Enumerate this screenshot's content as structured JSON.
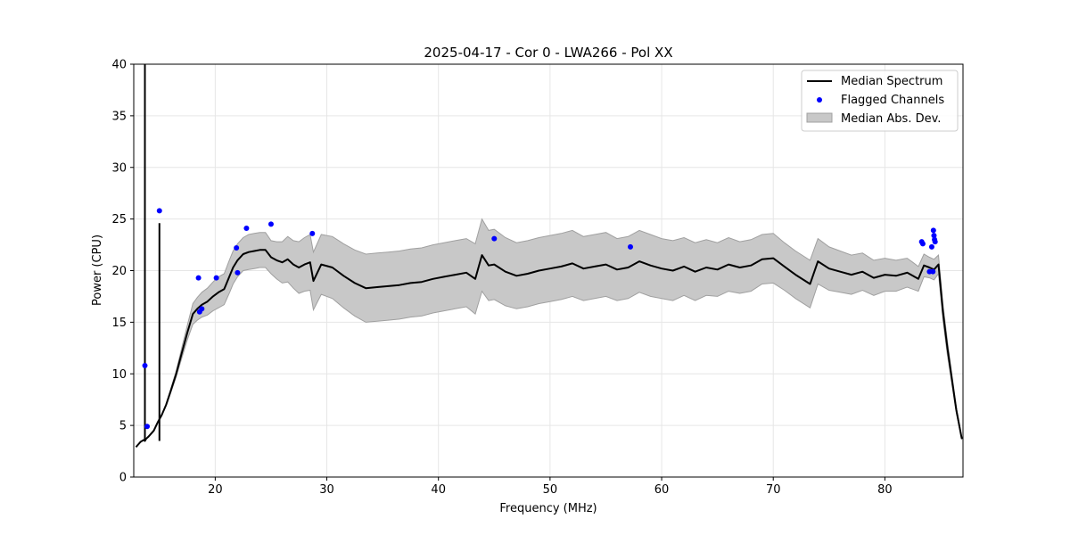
{
  "chart_data": {
    "type": "line",
    "title": "2025-04-17 - Cor 0 - LWA266 - Pol XX",
    "xlabel": "Frequency (MHz)",
    "ylabel": "Power (CPU)",
    "xlim": [
      12.7,
      87.0
    ],
    "ylim": [
      0,
      40
    ],
    "xticks": [
      20,
      30,
      40,
      50,
      60,
      70,
      80
    ],
    "yticks": [
      0,
      5,
      10,
      15,
      20,
      25,
      30,
      35,
      40
    ],
    "grid": true,
    "legend_position": "top-right",
    "legend": [
      "Median Spectrum",
      "Flagged Channels",
      "Median Abs. Dev."
    ],
    "colors": {
      "median": "#000000",
      "flagged": "#0000ff",
      "band_fill": "#c8c8c8",
      "band_edge": "#a0a0a0"
    },
    "series": [
      {
        "name": "Median Spectrum",
        "x": [
          12.9,
          13.3,
          13.6,
          13.7,
          13.8,
          14.0,
          14.5,
          14.8,
          14.9,
          15.2,
          15.6,
          16.0,
          16.5,
          17.0,
          17.5,
          18.0,
          18.4,
          18.8,
          19.3,
          19.8,
          20.3,
          20.8,
          21.3,
          21.6,
          22.0,
          22.5,
          23.0,
          23.5,
          24.0,
          24.5,
          25.0,
          25.5,
          26.0,
          26.5,
          27.0,
          27.5,
          28.0,
          28.5,
          28.8,
          29.5,
          30.5,
          31.5,
          32.5,
          33.5,
          34.5,
          35.5,
          36.5,
          37.5,
          38.5,
          39.5,
          40.5,
          41.5,
          42.5,
          43.3,
          43.9,
          44.5,
          45.0,
          46.0,
          47.0,
          48.0,
          49.0,
          50.0,
          51.0,
          52.0,
          53.0,
          54.0,
          55.0,
          56.0,
          57.0,
          58.0,
          59.0,
          60.0,
          61.0,
          62.0,
          63.0,
          64.0,
          65.0,
          66.0,
          67.0,
          68.0,
          69.0,
          70.0,
          71.0,
          72.0,
          73.3,
          74.0,
          75.0,
          76.0,
          77.0,
          78.0,
          79.0,
          80.0,
          81.0,
          82.0,
          82.5,
          83.0,
          83.5,
          84.0,
          84.4,
          84.8,
          85.2,
          85.6,
          86.0,
          86.4,
          86.9
        ],
        "values": [
          2.9,
          3.4,
          3.6,
          3.5,
          3.7,
          3.9,
          4.5,
          5.2,
          5.4,
          6.0,
          7.0,
          8.3,
          10.0,
          12.0,
          14.0,
          15.8,
          16.3,
          16.7,
          17.0,
          17.5,
          17.9,
          18.2,
          19.5,
          20.3,
          21.0,
          21.6,
          21.8,
          21.9,
          22.0,
          22.0,
          21.3,
          21.0,
          20.8,
          21.1,
          20.6,
          20.3,
          20.6,
          20.8,
          19.0,
          20.6,
          20.3,
          19.5,
          18.8,
          18.3,
          18.4,
          18.5,
          18.6,
          18.8,
          18.9,
          19.2,
          19.4,
          19.6,
          19.8,
          19.2,
          21.5,
          20.5,
          20.6,
          19.9,
          19.5,
          19.7,
          20.0,
          20.2,
          20.4,
          20.7,
          20.2,
          20.4,
          20.6,
          20.1,
          20.3,
          20.9,
          20.5,
          20.2,
          20.0,
          20.4,
          19.9,
          20.3,
          20.1,
          20.6,
          20.3,
          20.5,
          21.1,
          21.2,
          20.4,
          19.6,
          18.7,
          20.9,
          20.2,
          19.9,
          19.6,
          19.9,
          19.3,
          19.6,
          19.5,
          19.8,
          19.5,
          19.2,
          20.5,
          20.3,
          20.1,
          20.6,
          16.0,
          12.5,
          9.5,
          6.5,
          3.7
        ],
        "mad": [
          0.0,
          0.0,
          0.0,
          0.0,
          0.0,
          0.0,
          0.0,
          0.0,
          0.0,
          0.0,
          0.1,
          0.2,
          0.3,
          0.5,
          0.7,
          1.0,
          1.1,
          1.2,
          1.3,
          1.4,
          1.5,
          1.5,
          1.6,
          1.6,
          1.6,
          1.6,
          1.7,
          1.7,
          1.7,
          1.7,
          1.6,
          1.8,
          2.0,
          2.2,
          2.3,
          2.5,
          2.6,
          2.7,
          2.8,
          2.9,
          3.0,
          3.1,
          3.2,
          3.3,
          3.3,
          3.3,
          3.3,
          3.3,
          3.3,
          3.3,
          3.3,
          3.3,
          3.3,
          3.4,
          3.5,
          3.4,
          3.4,
          3.3,
          3.2,
          3.2,
          3.2,
          3.2,
          3.2,
          3.2,
          3.1,
          3.1,
          3.1,
          3.0,
          3.0,
          3.0,
          3.0,
          2.9,
          2.9,
          2.8,
          2.8,
          2.7,
          2.6,
          2.6,
          2.5,
          2.5,
          2.4,
          2.4,
          2.3,
          2.3,
          2.3,
          2.2,
          2.1,
          2.0,
          1.9,
          1.8,
          1.7,
          1.6,
          1.5,
          1.4,
          1.3,
          1.2,
          1.1,
          1.0,
          1.0,
          0.9,
          0.8,
          0.7,
          0.5,
          0.3,
          0.1
        ]
      },
      {
        "name": "Flagged Channels",
        "points": [
          [
            13.7,
            10.8
          ],
          [
            13.9,
            4.9
          ],
          [
            15.0,
            25.8
          ],
          [
            18.5,
            19.3
          ],
          [
            18.6,
            16.0
          ],
          [
            18.8,
            16.3
          ],
          [
            20.1,
            19.3
          ],
          [
            21.9,
            22.2
          ],
          [
            22.0,
            19.8
          ],
          [
            22.8,
            24.1
          ],
          [
            25.0,
            24.5
          ],
          [
            28.7,
            23.6
          ],
          [
            45.0,
            23.1
          ],
          [
            57.2,
            22.3
          ],
          [
            83.3,
            22.8
          ],
          [
            83.4,
            22.6
          ],
          [
            84.0,
            19.9
          ],
          [
            84.2,
            22.3
          ],
          [
            84.3,
            19.9
          ],
          [
            84.35,
            23.9
          ],
          [
            84.4,
            23.4
          ],
          [
            84.45,
            23.0
          ],
          [
            84.5,
            22.8
          ]
        ]
      }
    ],
    "spikes": [
      {
        "x": 13.7,
        "top": 40.0
      },
      {
        "x": 15.0,
        "top": 24.6
      }
    ]
  }
}
